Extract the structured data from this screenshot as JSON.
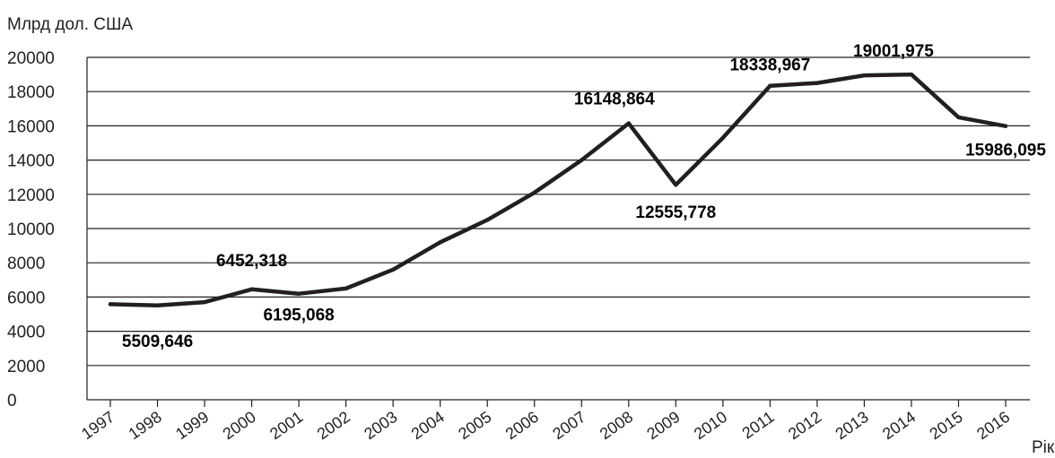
{
  "chart_data": {
    "type": "line",
    "ylabel": "Млрд дол. США",
    "xlabel": "Рік",
    "ylim": [
      0,
      20000
    ],
    "yticks": [
      "0",
      "2000",
      "4000",
      "6000",
      "8000",
      "10000",
      "12000",
      "14000",
      "16000",
      "18000",
      "20000"
    ],
    "grid": true,
    "x": [
      "1997",
      "1998",
      "1999",
      "2000",
      "2001",
      "2002",
      "2003",
      "2004",
      "2005",
      "2006",
      "2007",
      "2008",
      "2009",
      "2010",
      "2011",
      "2012",
      "2013",
      "2014",
      "2015",
      "2016"
    ],
    "series": [
      {
        "values": [
          5580,
          5509.646,
          5700,
          6452.318,
          6195.068,
          6500,
          7600,
          9200,
          10500,
          12100,
          14000,
          16148.864,
          12555.778,
          15300,
          18338.967,
          18500,
          18950,
          19001.975,
          16500,
          15986.095
        ]
      }
    ],
    "annotations": [
      {
        "x": "1998",
        "label": "5509,646"
      },
      {
        "x": "2000",
        "label": "6452,318"
      },
      {
        "x": "2001",
        "label": "6195,068"
      },
      {
        "x": "2008",
        "label": "16148,864"
      },
      {
        "x": "2009",
        "label": "12555,778"
      },
      {
        "x": "2011",
        "label": "18338,967"
      },
      {
        "x": "2014",
        "label": "19001,975"
      },
      {
        "x": "2016",
        "label": "15986,095"
      }
    ],
    "colors": {
      "line": "#231f20",
      "grid": "#231f20",
      "text": "#231f20"
    }
  }
}
